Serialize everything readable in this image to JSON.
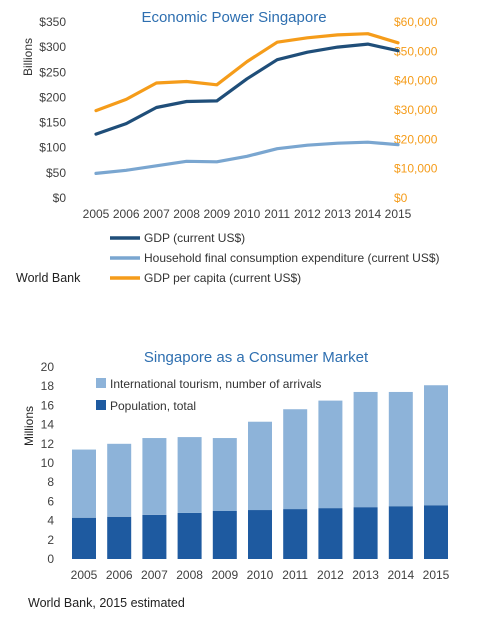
{
  "colors": {
    "gdp": "#1f4e79",
    "household": "#7aa6d0",
    "gdp_per_capita": "#f59c1a",
    "title": "#2e6fb0",
    "tourism": "#8db3d9",
    "population": "#1e5aa0",
    "axis_text": "#404040",
    "orange_text": "#f59c1a"
  },
  "chart_data": [
    {
      "type": "line",
      "title": "Economic Power Singapore",
      "ylabel": "Billions",
      "y2label": "",
      "source": "World Bank",
      "x": [
        "2005",
        "2006",
        "2007",
        "2008",
        "2009",
        "2010",
        "2011",
        "2012",
        "2013",
        "2014",
        "2015"
      ],
      "ylim": [
        0,
        350
      ],
      "yticks": [
        "$0",
        "$50",
        "$100",
        "$150",
        "$200",
        "$250",
        "$300",
        "$350"
      ],
      "y2lim": [
        0,
        60000
      ],
      "y2ticks": [
        "$0",
        "$10,000",
        "$20,000",
        "$30,000",
        "$40,000",
        "$50,000",
        "$60,000"
      ],
      "grid": false,
      "legend": "bottom",
      "series": [
        {
          "name": "GDP (current US$)",
          "axis": "left",
          "color": "#1f4e79",
          "values": [
            127,
            148,
            180,
            192,
            193,
            237,
            275,
            290,
            300,
            306,
            293
          ]
        },
        {
          "name": "Household final consumption expenditure (current US$)",
          "axis": "left",
          "color": "#7aa6d0",
          "values": [
            49,
            55,
            64,
            73,
            72,
            83,
            98,
            105,
            109,
            111,
            106
          ]
        },
        {
          "name": "GDP per capita (current US$)",
          "axis": "right",
          "color": "#f59c1a",
          "values": [
            29800,
            33600,
            39200,
            39700,
            38600,
            46500,
            53100,
            54600,
            55600,
            56000,
            52900
          ]
        }
      ]
    },
    {
      "type": "bar",
      "stacked": true,
      "title": "Singapore as a Consumer Market",
      "ylabel": "Millions",
      "source": "World Bank, 2015 estimated",
      "categories": [
        "2005",
        "2006",
        "2007",
        "2008",
        "2009",
        "2010",
        "2011",
        "2012",
        "2013",
        "2014",
        "2015"
      ],
      "ylim": [
        0,
        20
      ],
      "yticks": [
        "0",
        "2",
        "4",
        "6",
        "8",
        "10",
        "12",
        "14",
        "16",
        "18",
        "20"
      ],
      "grid": false,
      "legend": "top-left",
      "series": [
        {
          "name": "Population, total",
          "color": "#1e5aa0",
          "values": [
            4.3,
            4.4,
            4.6,
            4.8,
            5.0,
            5.1,
            5.2,
            5.3,
            5.4,
            5.5,
            5.6
          ]
        },
        {
          "name": "International tourism, number of arrivals",
          "color": "#8db3d9",
          "values": [
            7.1,
            7.6,
            8.0,
            7.9,
            7.6,
            9.2,
            10.4,
            11.2,
            12.0,
            11.9,
            12.5
          ]
        }
      ]
    }
  ]
}
